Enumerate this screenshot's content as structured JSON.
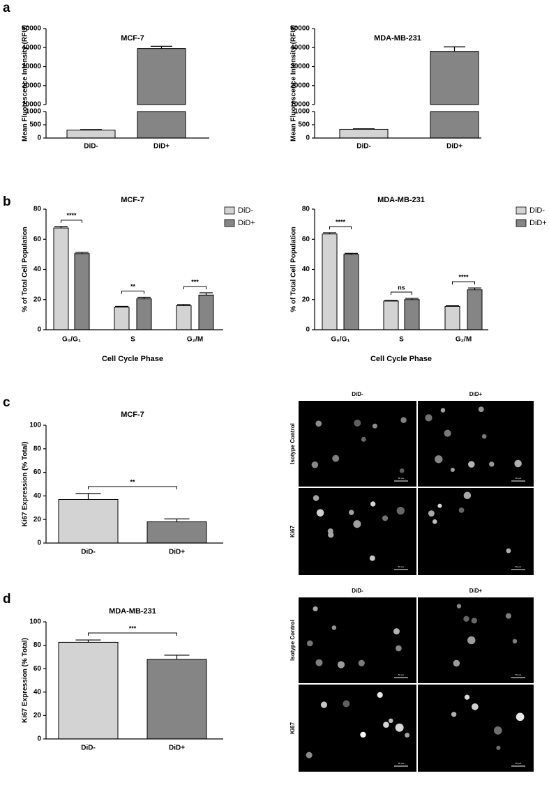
{
  "panel_labels": [
    "a",
    "b",
    "c",
    "d"
  ],
  "chart_data": [
    {
      "type": "broken_bar",
      "title": "MCF-7",
      "ylabel": "Mean Fluorescence Intensity (RFU)",
      "categories": [
        "DiD-",
        "DiD+"
      ],
      "values": [
        300,
        39500
      ],
      "errors": [
        20,
        1200
      ],
      "colors": [
        "#d3d3d3",
        "#858585"
      ],
      "y_segments": [
        {
          "ylim": [
            0,
            1000
          ],
          "yticks": [
            0,
            500,
            1000
          ]
        },
        {
          "ylim": [
            10000,
            50000
          ],
          "yticks": [
            10000,
            20000,
            30000,
            40000,
            50000
          ]
        }
      ]
    },
    {
      "type": "broken_bar",
      "title": "MDA-MB-231",
      "ylabel": "Mean Fluorescence Intensity (RFU)",
      "categories": [
        "DiD-",
        "DiD+"
      ],
      "values": [
        330,
        38000
      ],
      "errors": [
        20,
        2400
      ],
      "colors": [
        "#d3d3d3",
        "#858585"
      ],
      "y_segments": [
        {
          "ylim": [
            0,
            1000
          ],
          "yticks": [
            0,
            500,
            1000
          ]
        },
        {
          "ylim": [
            10000,
            50000
          ],
          "yticks": [
            10000,
            20000,
            30000,
            40000,
            50000
          ]
        }
      ]
    },
    {
      "type": "grouped_bar",
      "title": "MCF-7",
      "ylabel": "% of Total Cell Population",
      "xlabel": "Cell Cycle Phase",
      "categories": [
        "G₀/G₁",
        "S",
        "G₂/M"
      ],
      "series": [
        {
          "name": "DiD-",
          "color": "#d3d3d3",
          "values": [
            67.5,
            15,
            16
          ],
          "errors": [
            1,
            0.5,
            0.7
          ]
        },
        {
          "name": "DiD+",
          "color": "#858585",
          "values": [
            50.5,
            20.5,
            23
          ],
          "errors": [
            0.8,
            1,
            1.5
          ]
        }
      ],
      "significance": [
        "****",
        "**",
        "***"
      ],
      "ylim": [
        0,
        80
      ],
      "yticks": [
        0,
        20,
        40,
        60,
        80
      ],
      "legend": "top-right"
    },
    {
      "type": "grouped_bar",
      "title": "MDA-MB-231",
      "ylabel": "% of Total Cell Population",
      "xlabel": "Cell Cycle Phase",
      "categories": [
        "G₀/G₁",
        "S",
        "G₂/M"
      ],
      "series": [
        {
          "name": "DiD-",
          "color": "#d3d3d3",
          "values": [
            63.5,
            19,
            15.5
          ],
          "errors": [
            0.8,
            0.5,
            0.4
          ]
        },
        {
          "name": "DiD+",
          "color": "#858585",
          "values": [
            50,
            20,
            26.5
          ],
          "errors": [
            0.7,
            0.8,
            1.2
          ]
        }
      ],
      "significance": [
        "****",
        "ns",
        "****"
      ],
      "ylim": [
        0,
        80
      ],
      "yticks": [
        0,
        20,
        40,
        60,
        80
      ],
      "legend": "top-right"
    },
    {
      "type": "bar",
      "title": "MCF-7",
      "ylabel": "Ki67 Expression (% Total)",
      "categories": [
        "DiD-",
        "DiD+"
      ],
      "values": [
        37,
        18
      ],
      "errors": [
        5,
        2.5
      ],
      "colors": [
        "#d3d3d3",
        "#858585"
      ],
      "significance": [
        "**"
      ],
      "ylim": [
        0,
        100
      ],
      "yticks": [
        0,
        20,
        40,
        60,
        80,
        100
      ]
    },
    {
      "type": "bar",
      "title": "MDA-MB-231",
      "ylabel": "Ki67 Expression (% Total)",
      "categories": [
        "DiD-",
        "DiD+"
      ],
      "values": [
        82.5,
        68
      ],
      "errors": [
        2,
        3.5
      ],
      "colors": [
        "#d3d3d3",
        "#858585"
      ],
      "significance": [
        "***"
      ],
      "ylim": [
        0,
        100
      ],
      "yticks": [
        0,
        20,
        40,
        60,
        80,
        100
      ]
    }
  ],
  "micrographs": [
    {
      "column_labels": [
        "DiD-",
        "DiD+"
      ],
      "row_labels": [
        "Isotype Control",
        "Ki67"
      ],
      "scale_bar": "50 µm"
    },
    {
      "column_labels": [
        "DiD-",
        "DiD+"
      ],
      "row_labels": [
        "Isotype Control",
        "Ki67"
      ],
      "scale_bar": "50 µm"
    }
  ]
}
